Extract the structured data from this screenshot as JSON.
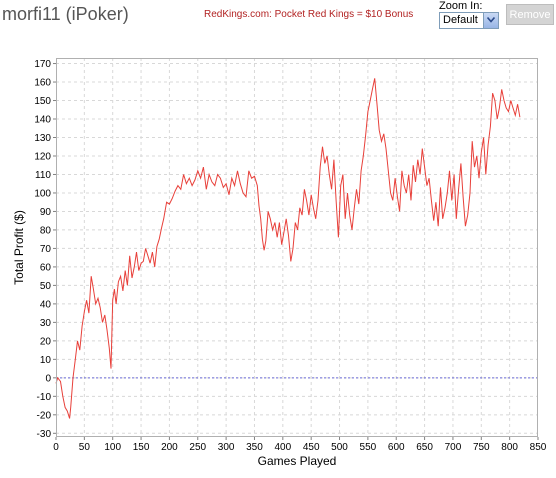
{
  "header": {
    "title": "morfi11 (iPoker)",
    "promo_link": "RedKings.com: Pocket Red Kings = $10 Bonus",
    "zoom_label": "Zoom In:",
    "zoom_value": "Default",
    "remove_label": "Remove"
  },
  "colors": {
    "line": "#e8403a",
    "zero_line": "#6a6ad8",
    "grid": "#d8d8d8",
    "plot_border": "#b0b0b0"
  },
  "chart_data": {
    "type": "line",
    "xlabel": "Games Played",
    "ylabel": "Total Profit ($)",
    "xlim": [
      0,
      850
    ],
    "ylim": [
      -32,
      173
    ],
    "x_ticks": [
      0,
      50,
      100,
      150,
      200,
      250,
      300,
      350,
      400,
      450,
      500,
      550,
      600,
      650,
      700,
      750,
      800,
      850
    ],
    "y_ticks": [
      -30,
      -20,
      -10,
      0,
      10,
      20,
      30,
      40,
      50,
      60,
      70,
      80,
      90,
      100,
      110,
      120,
      130,
      140,
      150,
      160,
      170
    ],
    "grid": true,
    "reference_line_y": 0,
    "series": [
      {
        "x": [
          0,
          3,
          8,
          12,
          16,
          20,
          24,
          26,
          30,
          34,
          38,
          42,
          46,
          50,
          54,
          58,
          62,
          66,
          70,
          74,
          78,
          82,
          86,
          90,
          94,
          97,
          100,
          103,
          106,
          110,
          114,
          118,
          122,
          126,
          130,
          134,
          138,
          142,
          146,
          150,
          154,
          158,
          162,
          166,
          170,
          174,
          178,
          182,
          186,
          190,
          195,
          200,
          205,
          210,
          215,
          220,
          225,
          230,
          235,
          240,
          245,
          250,
          255,
          260,
          265,
          270,
          275,
          280,
          285,
          290,
          295,
          300,
          305,
          310,
          315,
          320,
          325,
          330,
          335,
          340,
          345,
          350,
          355,
          358,
          361,
          364,
          367,
          370,
          374,
          378,
          382,
          386,
          390,
          394,
          398,
          402,
          406,
          410,
          414,
          418,
          422,
          426,
          430,
          434,
          438,
          442,
          446,
          450,
          454,
          458,
          462,
          466,
          470,
          474,
          478,
          482,
          486,
          490,
          494,
          498,
          502,
          506,
          510,
          514,
          518,
          522,
          526,
          530,
          534,
          538,
          542,
          546,
          550,
          554,
          558,
          562,
          566,
          570,
          574,
          578,
          582,
          586,
          590,
          594,
          598,
          602,
          606,
          610,
          614,
          618,
          622,
          626,
          630,
          634,
          638,
          642,
          646,
          650,
          654,
          658,
          662,
          666,
          670,
          674,
          678,
          682,
          686,
          690,
          694,
          698,
          702,
          706,
          710,
          714,
          718,
          722,
          726,
          730,
          734,
          738,
          742,
          746,
          750,
          754,
          758,
          762,
          766,
          770,
          774,
          778,
          782,
          786,
          790,
          794,
          798,
          802,
          806,
          810,
          814,
          818
        ],
        "y": [
          -3,
          0,
          -2,
          -10,
          -16,
          -18,
          -22,
          -16,
          0,
          10,
          20,
          15,
          28,
          36,
          42,
          35,
          55,
          48,
          40,
          43,
          38,
          30,
          34,
          26,
          16,
          5,
          42,
          48,
          40,
          52,
          55,
          47,
          58,
          50,
          66,
          54,
          60,
          68,
          58,
          62,
          63,
          70,
          66,
          62,
          68,
          60,
          71,
          75,
          81,
          86,
          95,
          94,
          97,
          101,
          104,
          102,
          110,
          105,
          108,
          104,
          107,
          112,
          108,
          114,
          102,
          110,
          106,
          104,
          110,
          108,
          103,
          105,
          99,
          108,
          104,
          112,
          105,
          100,
          98,
          112,
          108,
          109,
          104,
          93,
          86,
          75,
          69,
          74,
          90,
          86,
          80,
          84,
          76,
          84,
          72,
          79,
          86,
          77,
          63,
          70,
          84,
          80,
          92,
          88,
          102,
          96,
          88,
          99,
          92,
          86,
          96,
          114,
          125,
          116,
          120,
          110,
          102,
          118,
          96,
          76,
          104,
          110,
          86,
          100,
          88,
          80,
          92,
          102,
          94,
          112,
          120,
          131,
          144,
          150,
          156,
          162,
          148,
          134,
          128,
          132,
          124,
          112,
          100,
          96,
          108,
          98,
          90,
          112,
          104,
          100,
          110,
          96,
          115,
          106,
          118,
          110,
          124,
          114,
          104,
          108,
          96,
          85,
          95,
          82,
          103,
          86,
          92,
          100,
          112,
          96,
          110,
          86,
          102,
          116,
          98,
          82,
          88,
          100,
          128,
          114,
          120,
          108,
          122,
          130,
          110,
          126,
          136,
          154,
          150,
          140,
          146,
          156,
          150,
          146,
          144,
          150,
          146,
          142,
          148,
          141
        ]
      }
    ]
  }
}
